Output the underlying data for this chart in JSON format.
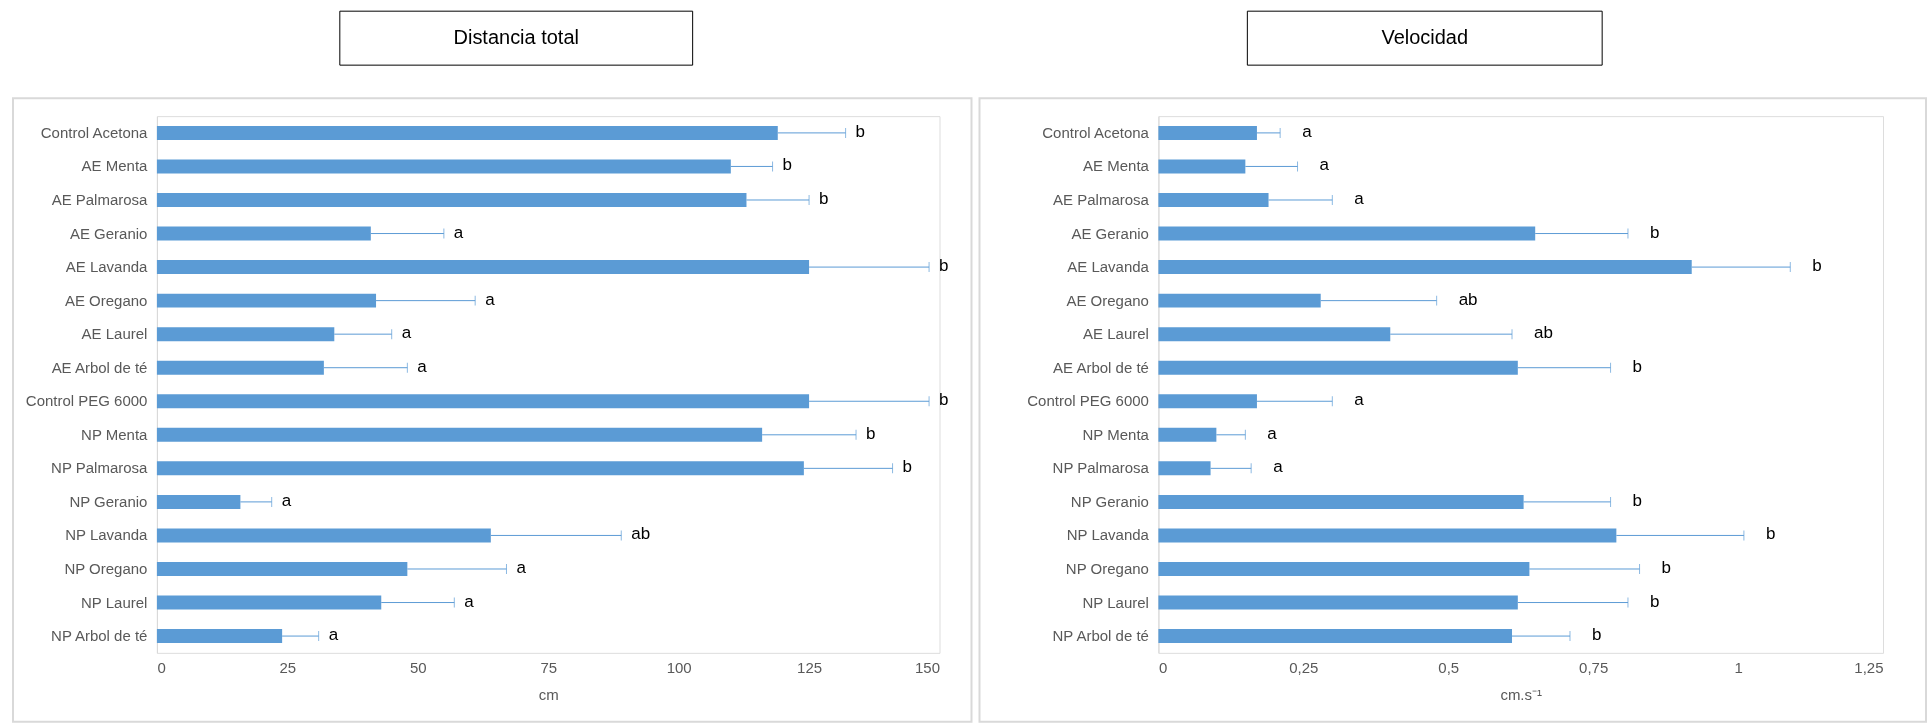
{
  "chart_data": [
    {
      "type": "bar",
      "orientation": "horizontal",
      "title": "Distancia total",
      "xlabel": "cm",
      "color": "#5b9bd5",
      "categories": [
        "Control Acetona",
        "AE Menta",
        "AE Palmarosa",
        "AE Geranio",
        "AE Lavanda",
        "AE Oregano",
        "AE Laurel",
        "AE Arbol de té",
        "Control PEG 6000",
        "NP Menta",
        "NP Palmarosa",
        "NP Geranio",
        "NP Lavanda",
        "NP Oregano",
        "NP Laurel",
        "NP Arbol de té"
      ],
      "values": [
        119,
        110,
        113,
        41,
        125,
        42,
        34,
        32,
        125,
        116,
        124,
        16,
        64,
        48,
        43,
        24
      ],
      "errors": [
        [
          119,
          132
        ],
        [
          110,
          118
        ],
        [
          113,
          125
        ],
        [
          41,
          55
        ],
        [
          125,
          148
        ],
        [
          42,
          61
        ],
        [
          34,
          45
        ],
        [
          32,
          48
        ],
        [
          125,
          148
        ],
        [
          116,
          134
        ],
        [
          124,
          141
        ],
        [
          16,
          22
        ],
        [
          64,
          89
        ],
        [
          48,
          67
        ],
        [
          43,
          57
        ],
        [
          24,
          31
        ]
      ],
      "xlim": [
        0,
        150
      ],
      "xticks": [
        0,
        25,
        50,
        75,
        100,
        125,
        150
      ],
      "annotations": [
        {
          "text": "b",
          "x": 132,
          "y": "Control Acetona"
        },
        {
          "text": "b",
          "x": 118,
          "y": "AE Menta"
        },
        {
          "text": "b",
          "x": 125,
          "y": "AE Palmarosa"
        },
        {
          "text": "a",
          "x": 55,
          "y": "AE Geranio"
        },
        {
          "text": "b",
          "x": 148,
          "y": "AE Lavanda"
        },
        {
          "text": "a",
          "x": 61,
          "y": "AE Oregano"
        },
        {
          "text": "a",
          "x": 45,
          "y": "AE Laurel"
        },
        {
          "text": "a",
          "x": 48,
          "y": "AE Arbol de té"
        },
        {
          "text": "b",
          "x": 148,
          "y": "Control PEG 6000"
        },
        {
          "text": "b",
          "x": 134,
          "y": "NP Menta"
        },
        {
          "text": "b",
          "x": 141,
          "y": "NP Palmarosa"
        },
        {
          "text": "a",
          "x": 22,
          "y": "NP Geranio"
        },
        {
          "text": "ab",
          "x": 89,
          "y": "NP Lavanda"
        },
        {
          "text": "a",
          "x": 67,
          "y": "NP Oregano"
        },
        {
          "text": "a",
          "x": 57,
          "y": "NP Laurel"
        },
        {
          "text": "a",
          "x": 31,
          "y": "NP Arbol de té"
        }
      ]
    },
    {
      "type": "bar",
      "orientation": "horizontal",
      "title": "Velocidad",
      "xlabel": "cm.s⁻¹",
      "color": "#5b9bd5",
      "categories": [
        "Control Acetona",
        "AE Menta",
        "AE Palmarosa",
        "AE Geranio",
        "AE Lavanda",
        "AE Oregano",
        "AE Laurel",
        "AE Arbol de té",
        "Control PEG 6000",
        "NP Menta",
        "NP Palmarosa",
        "NP Geranio",
        "NP Lavanda",
        "NP Oregano",
        "NP Laurel",
        "NP Arbol de té"
      ],
      "values": [
        0.17,
        0.15,
        0.19,
        0.65,
        0.92,
        0.28,
        0.4,
        0.62,
        0.17,
        0.1,
        0.09,
        0.63,
        0.79,
        0.64,
        0.62,
        0.61
      ],
      "errors": [
        [
          0.17,
          0.21
        ],
        [
          0.15,
          0.24
        ],
        [
          0.19,
          0.3
        ],
        [
          0.65,
          0.81
        ],
        [
          0.92,
          1.09
        ],
        [
          0.28,
          0.48
        ],
        [
          0.4,
          0.61
        ],
        [
          0.62,
          0.78
        ],
        [
          0.17,
          0.3
        ],
        [
          0.1,
          0.15
        ],
        [
          0.09,
          0.16
        ],
        [
          0.63,
          0.78
        ],
        [
          0.79,
          1.01
        ],
        [
          0.64,
          0.83
        ],
        [
          0.62,
          0.81
        ],
        [
          0.61,
          0.71
        ]
      ],
      "xlim": [
        0,
        1.25
      ],
      "xticks": [
        0,
        {
          "value": 0.25,
          "label": "0,25"
        },
        {
          "value": 0.5,
          "label": "0,5"
        },
        {
          "value": 0.75,
          "label": "0,75"
        },
        1,
        {
          "value": 1.25,
          "label": "1,25"
        }
      ],
      "annotations": [
        {
          "text": "a",
          "x": 0.21,
          "y": "Control Acetona"
        },
        {
          "text": "a",
          "x": 0.24,
          "y": "AE Menta"
        },
        {
          "text": "a",
          "x": 0.3,
          "y": "AE Palmarosa"
        },
        {
          "text": "b",
          "x": 0.81,
          "y": "AE Geranio"
        },
        {
          "text": "b",
          "x": 1.09,
          "y": "AE Lavanda"
        },
        {
          "text": "ab",
          "x": 0.48,
          "y": "AE Oregano"
        },
        {
          "text": "ab",
          "x": 0.61,
          "y": "AE Laurel"
        },
        {
          "text": "b",
          "x": 0.78,
          "y": "AE Arbol de té"
        },
        {
          "text": "a",
          "x": 0.3,
          "y": "Control PEG 6000"
        },
        {
          "text": "a",
          "x": 0.15,
          "y": "NP Menta"
        },
        {
          "text": "a",
          "x": 0.16,
          "y": "NP Palmarosa"
        },
        {
          "text": "b",
          "x": 0.78,
          "y": "NP Geranio"
        },
        {
          "text": "b",
          "x": 1.01,
          "y": "NP Lavanda"
        },
        {
          "text": "b",
          "x": 0.83,
          "y": "NP Oregano"
        },
        {
          "text": "b",
          "x": 0.81,
          "y": "NP Laurel"
        },
        {
          "text": "b",
          "x": 0.71,
          "y": "NP Arbol de té"
        }
      ]
    }
  ]
}
